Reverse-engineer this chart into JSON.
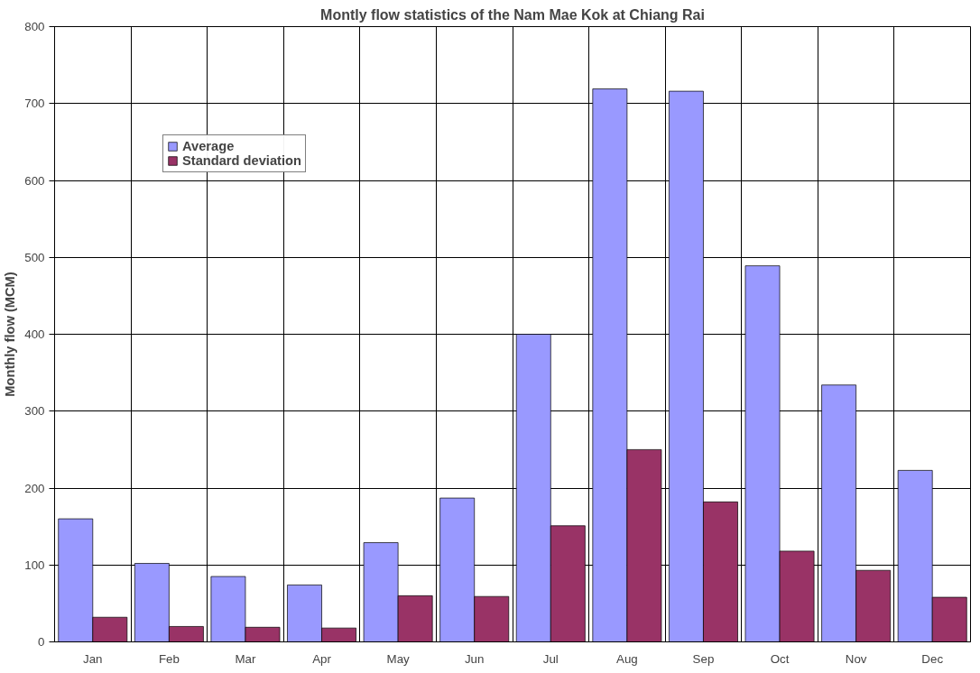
{
  "chart_data": {
    "type": "bar",
    "title": "Montly flow statistics of the Nam Mae Kok at Chiang Rai",
    "ylabel": "Monthly flow (MCM)",
    "categories": [
      "Jan",
      "Feb",
      "Mar",
      "Apr",
      "May",
      "Jun",
      "Jul",
      "Aug",
      "Sep",
      "Oct",
      "Nov",
      "Dec"
    ],
    "series": [
      {
        "name": "Average",
        "color": "#9999ff",
        "values": [
          160,
          102,
          85,
          74,
          129,
          187,
          400,
          719,
          716,
          489,
          334,
          223
        ]
      },
      {
        "name": "Standard deviation",
        "color": "#993366",
        "values": [
          32,
          20,
          19,
          18,
          60,
          59,
          151,
          250,
          182,
          118,
          93,
          58
        ]
      }
    ],
    "ylim": [
      0,
      800
    ],
    "yticks": [
      0,
      100,
      200,
      300,
      400,
      500,
      600,
      700,
      800
    ],
    "grid": true,
    "legend": "top left"
  }
}
